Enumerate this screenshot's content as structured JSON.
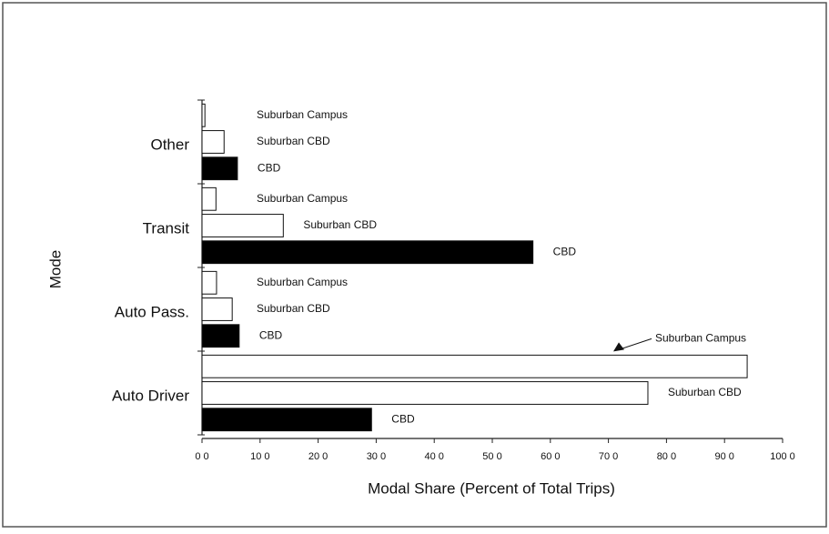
{
  "chart_data": {
    "type": "bar",
    "orientation": "horizontal",
    "xlabel": "Modal Share (Percent of Total Trips)",
    "ylabel": "Mode",
    "categories": [
      "Other",
      "Transit",
      "Auto Pass.",
      "Auto Driver"
    ],
    "series": [
      {
        "name": "Suburban Campus",
        "color": "#ffffff",
        "values": [
          0.5,
          2.4,
          2.5,
          93.9
        ]
      },
      {
        "name": "Suburban CBD",
        "color": "#ffffff",
        "values": [
          3.8,
          14.0,
          5.2,
          76.8
        ]
      },
      {
        "name": "CBD",
        "color": "#000000",
        "values": [
          6.1,
          57.0,
          6.4,
          29.2
        ]
      }
    ],
    "xlim": [
      0,
      100
    ],
    "xticks": [
      {
        "value": 0,
        "label": "0 0"
      },
      {
        "value": 10,
        "label": "10 0"
      },
      {
        "value": 20,
        "label": "20 0"
      },
      {
        "value": 30,
        "label": "30 0"
      },
      {
        "value": 40,
        "label": "40 0"
      },
      {
        "value": 50,
        "label": "50 0"
      },
      {
        "value": 60,
        "label": "60 0"
      },
      {
        "value": 70,
        "label": "70 0"
      },
      {
        "value": 80,
        "label": "80 0"
      },
      {
        "value": 90,
        "label": "90 0"
      },
      {
        "value": 100,
        "label": "100 0"
      }
    ],
    "grid": false
  }
}
